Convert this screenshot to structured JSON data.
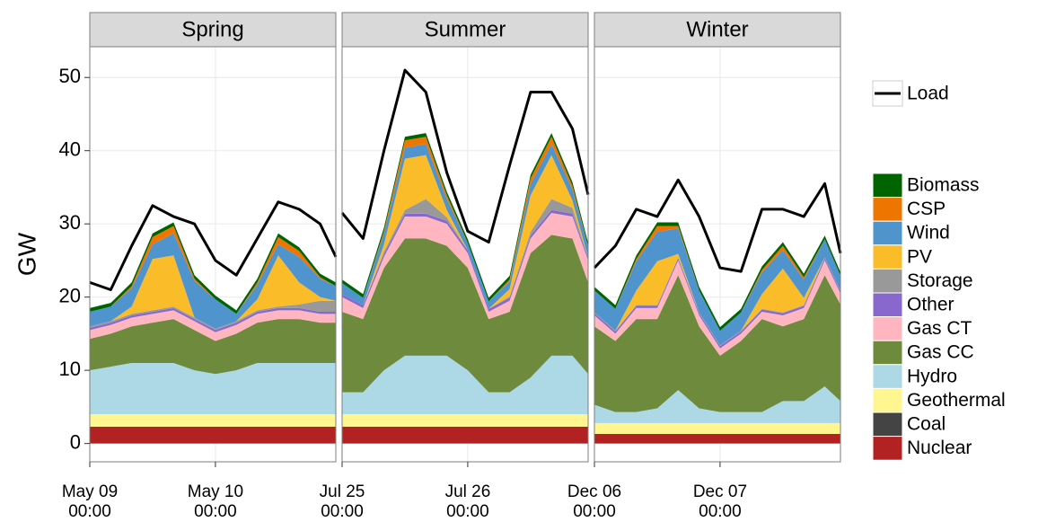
{
  "chart_data": [
    {
      "type": "area",
      "title": "Spring",
      "ylabel": "GW",
      "grid": true,
      "x": [
        0,
        4,
        8,
        12,
        16,
        20,
        24,
        28,
        32,
        36,
        40,
        44,
        47
      ],
      "xlim": [
        0,
        47
      ],
      "xticks": [
        {
          "value": 0,
          "label": "May 09\n00:00"
        },
        {
          "value": 24,
          "label": "May 10\n00:00"
        }
      ],
      "ylim": [
        -2.5,
        54.2
      ],
      "yticks": [
        0,
        10,
        20,
        30,
        40,
        50
      ],
      "series": [
        {
          "name": "Nuclear",
          "color": "#b22222",
          "values": [
            2.3,
            2.3,
            2.3,
            2.3,
            2.3,
            2.3,
            2.3,
            2.3,
            2.3,
            2.3,
            2.3,
            2.3,
            2.3
          ]
        },
        {
          "name": "Coal",
          "color": "#444444",
          "values": [
            0,
            0,
            0,
            0,
            0,
            0,
            0,
            0,
            0,
            0,
            0,
            0,
            0
          ]
        },
        {
          "name": "Geothermal",
          "color": "#fff68f",
          "values": [
            1.7,
            1.7,
            1.7,
            1.7,
            1.7,
            1.7,
            1.7,
            1.7,
            1.7,
            1.7,
            1.7,
            1.7,
            1.7
          ]
        },
        {
          "name": "Hydro",
          "color": "#add8e6",
          "values": [
            6,
            6.5,
            7,
            7,
            7,
            6,
            5.5,
            6,
            7,
            7,
            7,
            7,
            7
          ]
        },
        {
          "name": "Gas CC",
          "color": "#6e8b3d",
          "values": [
            4.3,
            4.5,
            5,
            5.5,
            6,
            5.5,
            4.5,
            5,
            5.5,
            6,
            6,
            5.5,
            5.5
          ]
        },
        {
          "name": "Gas CT",
          "color": "#ffb6c1",
          "values": [
            1.2,
            1.2,
            1.2,
            1.2,
            1.2,
            1.2,
            1.2,
            1.2,
            1.2,
            1.2,
            1.2,
            1.2,
            1.2
          ]
        },
        {
          "name": "Other",
          "color": "#8968cd",
          "values": [
            0.3,
            0.3,
            0.3,
            0.3,
            0.3,
            0.3,
            0.3,
            0.3,
            0.3,
            0.3,
            0.3,
            0.3,
            0.3
          ]
        },
        {
          "name": "Storage",
          "color": "#999999",
          "values": [
            0.2,
            0.2,
            0.2,
            0.2,
            0.2,
            0.2,
            0.2,
            0.2,
            0.2,
            0.2,
            0.5,
            1.5,
            1.5
          ]
        },
        {
          "name": "PV",
          "color": "#fbbc2a",
          "values": [
            0,
            0,
            1,
            7,
            7,
            0,
            0,
            0,
            1.5,
            7,
            3,
            0.5,
            0
          ]
        },
        {
          "name": "Wind",
          "color": "#4f94cd",
          "values": [
            2,
            2,
            2.5,
            2,
            3,
            5,
            4,
            1,
            2,
            1.5,
            3.5,
            2.5,
            2
          ]
        },
        {
          "name": "CSP",
          "color": "#ee7600",
          "values": [
            0,
            0,
            0.3,
            1,
            1,
            0.3,
            0,
            0,
            0.3,
            1,
            0.8,
            0.2,
            0
          ]
        },
        {
          "name": "Biomass",
          "color": "#006400",
          "values": [
            0.5,
            0.5,
            0.5,
            0.5,
            0.5,
            0.5,
            0.5,
            0.5,
            0.5,
            0.5,
            0.5,
            0.5,
            0.5
          ]
        },
        {
          "name": "Load",
          "color": "#000000",
          "style": "line",
          "values": [
            22,
            21,
            27,
            32.5,
            31,
            30,
            25,
            23,
            28,
            33,
            32,
            30,
            25.5
          ]
        }
      ]
    },
    {
      "type": "area",
      "title": "Summer",
      "grid": true,
      "x": [
        0,
        4,
        8,
        12,
        16,
        20,
        24,
        28,
        32,
        36,
        40,
        44,
        47
      ],
      "xlim": [
        0,
        47
      ],
      "xticks": [
        {
          "value": 0,
          "label": "Jul 25\n00:00"
        },
        {
          "value": 24,
          "label": "Jul 26\n00:00"
        }
      ],
      "ylim": [
        -2.5,
        54.2
      ],
      "series": [
        {
          "name": "Nuclear",
          "color": "#b22222",
          "values": [
            2.3,
            2.3,
            2.3,
            2.3,
            2.3,
            2.3,
            2.3,
            2.3,
            2.3,
            2.3,
            2.3,
            2.3,
            2.3
          ]
        },
        {
          "name": "Coal",
          "color": "#444444",
          "values": [
            0,
            0,
            0,
            0,
            0,
            0,
            0,
            0,
            0,
            0,
            0,
            0,
            0
          ]
        },
        {
          "name": "Geothermal",
          "color": "#fff68f",
          "values": [
            1.7,
            1.7,
            1.7,
            1.7,
            1.7,
            1.7,
            1.7,
            1.7,
            1.7,
            1.7,
            1.7,
            1.7,
            1.7
          ]
        },
        {
          "name": "Hydro",
          "color": "#add8e6",
          "values": [
            3,
            3,
            6,
            8,
            8,
            8,
            6,
            3,
            3,
            5,
            8,
            8,
            5.5
          ]
        },
        {
          "name": "Gas CC",
          "color": "#6e8b3d",
          "values": [
            11,
            10,
            14,
            16,
            16,
            15,
            14,
            10,
            11,
            17,
            16.5,
            16,
            12.5
          ]
        },
        {
          "name": "Gas CT",
          "color": "#ffb6c1",
          "values": [
            2,
            1.5,
            1.5,
            3,
            3,
            3,
            2,
            1,
            1.5,
            2,
            3,
            3,
            3
          ]
        },
        {
          "name": "Other",
          "color": "#8968cd",
          "values": [
            0.4,
            0.4,
            0.4,
            0.4,
            0.4,
            0.4,
            0.4,
            0.4,
            0.4,
            0.4,
            0.4,
            0.4,
            0.4
          ]
        },
        {
          "name": "Storage",
          "color": "#999999",
          "values": [
            0,
            0,
            0.3,
            0.5,
            2,
            0.5,
            0,
            0,
            0.2,
            0.5,
            1.5,
            0.8,
            0
          ]
        },
        {
          "name": "PV",
          "color": "#fbbc2a",
          "values": [
            0,
            0,
            1,
            7,
            6,
            1,
            0,
            0,
            1,
            5,
            6,
            1,
            0
          ]
        },
        {
          "name": "Wind",
          "color": "#4f94cd",
          "values": [
            1.5,
            1,
            1.5,
            1.5,
            1.5,
            1.5,
            1,
            1,
            1,
            1.5,
            1.5,
            1.5,
            1.5
          ]
        },
        {
          "name": "CSP",
          "color": "#ee7600",
          "values": [
            0,
            0,
            0.3,
            1,
            1,
            0.5,
            0,
            0,
            0.3,
            0.8,
            1,
            0.5,
            0
          ]
        },
        {
          "name": "Biomass",
          "color": "#006400",
          "values": [
            0.5,
            0.5,
            0.5,
            0.5,
            0.5,
            0.5,
            0.5,
            0.5,
            0.5,
            0.5,
            0.5,
            0.5,
            0.5
          ]
        },
        {
          "name": "Load",
          "color": "#000000",
          "style": "line",
          "values": [
            31.5,
            28,
            40,
            51,
            48,
            37,
            29,
            27.5,
            38,
            48,
            48,
            43,
            34
          ]
        }
      ]
    },
    {
      "type": "area",
      "title": "Winter",
      "grid": true,
      "x": [
        0,
        4,
        8,
        12,
        16,
        20,
        24,
        28,
        32,
        36,
        40,
        44,
        47
      ],
      "xlim": [
        0,
        47
      ],
      "xticks": [
        {
          "value": 0,
          "label": "Dec 06\n00:00"
        },
        {
          "value": 24,
          "label": "Dec 07\n00:00"
        }
      ],
      "ylim": [
        -2.5,
        54.2
      ],
      "series": [
        {
          "name": "Nuclear",
          "color": "#b22222",
          "values": [
            1.3,
            1.3,
            1.3,
            1.3,
            1.3,
            1.3,
            1.3,
            1.3,
            1.3,
            1.3,
            1.3,
            1.3,
            1.3
          ]
        },
        {
          "name": "Coal",
          "color": "#444444",
          "values": [
            0,
            0,
            0,
            0,
            0,
            0,
            0,
            0,
            0,
            0,
            0,
            0,
            0
          ]
        },
        {
          "name": "Geothermal",
          "color": "#fff68f",
          "values": [
            1.5,
            1.5,
            1.5,
            1.5,
            1.5,
            1.5,
            1.5,
            1.5,
            1.5,
            1.5,
            1.5,
            1.5,
            1.5
          ]
        },
        {
          "name": "Hydro",
          "color": "#add8e6",
          "values": [
            2.5,
            1.5,
            1.5,
            2,
            4.5,
            2,
            1.5,
            1.5,
            1.5,
            3,
            3,
            5,
            3
          ]
        },
        {
          "name": "Gas CC",
          "color": "#6e8b3d",
          "values": [
            10.7,
            9.7,
            12.7,
            12.2,
            15.7,
            11.2,
            7.7,
            9.7,
            12.7,
            10.2,
            11.2,
            15.2,
            13.2
          ]
        },
        {
          "name": "Gas CT",
          "color": "#ffb6c1",
          "values": [
            1.5,
            1,
            1.5,
            1.5,
            2,
            1.5,
            1,
            1,
            1,
            1.5,
            1.5,
            2,
            1.5
          ]
        },
        {
          "name": "Other",
          "color": "#8968cd",
          "values": [
            0.3,
            0.3,
            0.3,
            0.3,
            0.3,
            0.3,
            0.3,
            0.3,
            0.3,
            0.3,
            0.3,
            0.3,
            0.3
          ]
        },
        {
          "name": "Storage",
          "color": "#999999",
          "values": [
            0.1,
            0.1,
            0.1,
            0.1,
            0.1,
            0.1,
            0.1,
            0.1,
            0.1,
            0.1,
            0.1,
            0.1,
            0.1
          ]
        },
        {
          "name": "PV",
          "color": "#fbbc2a",
          "values": [
            0,
            0,
            2,
            6,
            0.5,
            0,
            0,
            0,
            2,
            6,
            1,
            0,
            0
          ]
        },
        {
          "name": "Wind",
          "color": "#4f94cd",
          "values": [
            3,
            3,
            4,
            4,
            3.5,
            3,
            2,
            2.5,
            3,
            2.5,
            2.5,
            2.5,
            2
          ]
        },
        {
          "name": "CSP",
          "color": "#ee7600",
          "values": [
            0,
            0,
            0.3,
            0.8,
            0.3,
            0,
            0,
            0,
            0.3,
            0.6,
            0.3,
            0,
            0
          ]
        },
        {
          "name": "Biomass",
          "color": "#006400",
          "values": [
            0.5,
            0.5,
            0.5,
            0.5,
            0.5,
            0.5,
            0.5,
            0.5,
            0.5,
            0.5,
            0.5,
            0.5,
            0.5
          ]
        },
        {
          "name": "Load",
          "color": "#000000",
          "style": "line",
          "values": [
            24,
            27,
            32,
            31,
            36,
            31,
            24,
            23.5,
            32,
            32,
            31,
            35.5,
            26
          ]
        }
      ]
    }
  ]
}
